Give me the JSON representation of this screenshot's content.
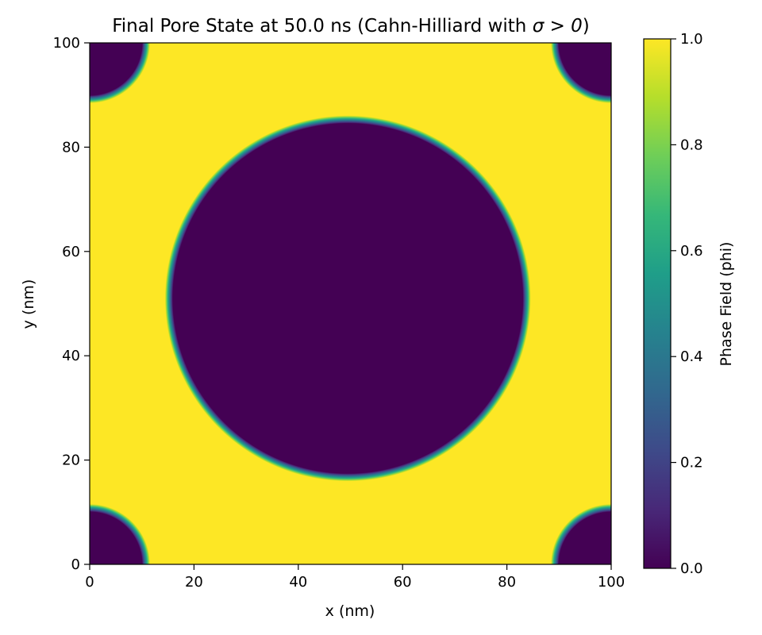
{
  "chart_data": {
    "type": "heatmap",
    "title_prefix": "Final Pore State at 50.0 ns (Cahn-Hilliard with ",
    "title_math": "σ > 0",
    "title_suffix": ")",
    "xlabel": "x (nm)",
    "ylabel": "y (nm)",
    "xlim": [
      0,
      100
    ],
    "ylim": [
      0,
      100
    ],
    "xticks": [
      0,
      20,
      40,
      60,
      80,
      100
    ],
    "yticks": [
      0,
      20,
      40,
      60,
      80,
      100
    ],
    "colorbar": {
      "label": "Phase Field (phi)",
      "range": [
        0.0,
        1.0
      ],
      "ticks": [
        "0.0",
        "0.2",
        "0.4",
        "0.6",
        "0.8",
        "1.0"
      ],
      "colormap": "viridis"
    },
    "field": {
      "matrix_value": 1.0,
      "pore_value": 0.0,
      "pores": [
        {
          "name": "central pore",
          "cx": 49.5,
          "cy": 51.0,
          "r": 34.0
        },
        {
          "name": "corner pore bottom-left",
          "cx": 0,
          "cy": 0,
          "r": 10.5
        },
        {
          "name": "corner pore bottom-right",
          "cx": 100,
          "cy": 0,
          "r": 10.5
        },
        {
          "name": "corner pore top-left",
          "cx": 0,
          "cy": 100,
          "r": 10.5
        },
        {
          "name": "corner pore top-right",
          "cx": 100,
          "cy": 100,
          "r": 10.5
        }
      ]
    }
  },
  "colors": {
    "pore": "#440154",
    "matrix": "#fde725",
    "viridis_stops": [
      "#440154",
      "#482878",
      "#3e4a89",
      "#31688e",
      "#26828e",
      "#1f9e89",
      "#35b779",
      "#6ece58",
      "#b5de2b",
      "#fde725"
    ]
  }
}
